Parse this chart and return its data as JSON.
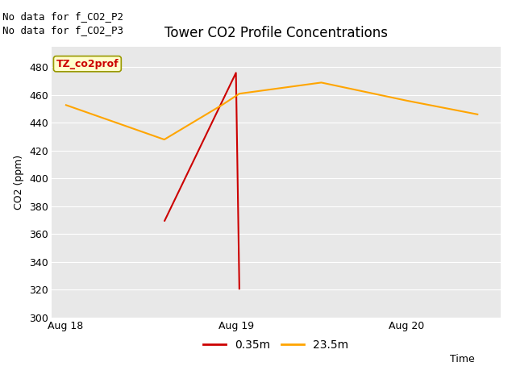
{
  "title": "Tower CO2 Profile Concentrations",
  "xlabel": "Time",
  "ylabel": "CO2 (ppm)",
  "top_annotations": [
    "No data for f_CO2_P2",
    "No data for f_CO2_P3"
  ],
  "legend_label_box": "TZ_co2prof",
  "ylim": [
    300,
    490
  ],
  "yticks": [
    300,
    320,
    340,
    360,
    380,
    400,
    420,
    440,
    460,
    480
  ],
  "xlim_min": -0.08,
  "xlim_max": 2.55,
  "xtick_labels": [
    "Aug 18",
    "Aug 19",
    "Aug 20"
  ],
  "xtick_positions": [
    0.0,
    1.0,
    2.0
  ],
  "plot_bg_color": "#e8e8e8",
  "fig_bg_color": "#ffffff",
  "series": [
    {
      "label": "0.35m",
      "color": "#cc0000",
      "x": [
        0.58,
        1.0,
        1.02
      ],
      "y": [
        369,
        476,
        320
      ]
    },
    {
      "label": "23.5m",
      "color": "#ffa500",
      "x": [
        0.0,
        0.58,
        0.92,
        1.02,
        1.5,
        2.0,
        2.42
      ],
      "y": [
        453,
        428,
        453,
        461,
        469,
        456,
        446
      ]
    }
  ],
  "grid_color": "#ffffff",
  "grid_linewidth": 0.8,
  "line_linewidth": 1.5,
  "title_fontsize": 12,
  "axis_label_fontsize": 9,
  "tick_fontsize": 9,
  "annotation_fontsize": 9,
  "legend_fontsize": 10
}
